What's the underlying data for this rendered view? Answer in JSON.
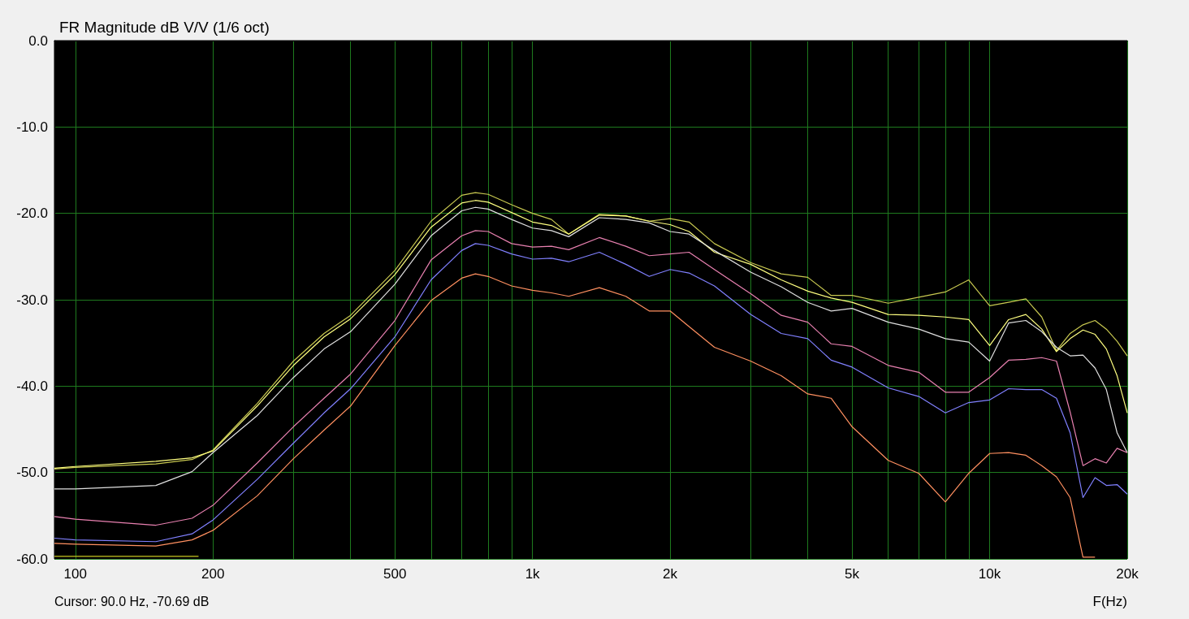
{
  "chart_data": {
    "type": "line",
    "title": "FR Magnitude dB V/V (1/6 oct)",
    "xlabel": "F(Hz)",
    "annotations": [
      "Cursor: 90.0 Hz, -70.69 dB"
    ],
    "log": "x",
    "grid": true,
    "marker": "none",
    "line_style": "solid",
    "xlim": [
      90,
      20000
    ],
    "ylim": [
      -60,
      0
    ],
    "xticks": [
      100,
      {
        "value": 200,
        "label": "200"
      },
      {
        "value": 300,
        "label": null
      },
      {
        "value": 400,
        "label": null
      },
      500,
      {
        "value": 600,
        "label": null
      },
      {
        "value": 700,
        "label": null
      },
      {
        "value": 800,
        "label": null
      },
      {
        "value": 900,
        "label": null
      },
      {
        "value": 1000,
        "label": "1k"
      },
      {
        "value": 2000,
        "label": "2k"
      },
      {
        "value": 3000,
        "label": null
      },
      {
        "value": 4000,
        "label": null
      },
      {
        "value": 5000,
        "label": "5k"
      },
      {
        "value": 6000,
        "label": null
      },
      {
        "value": 7000,
        "label": null
      },
      {
        "value": 8000,
        "label": null
      },
      {
        "value": 9000,
        "label": null
      },
      {
        "value": 10000,
        "label": "10k"
      },
      {
        "value": 20000,
        "label": "20k"
      }
    ],
    "yticks": [
      {
        "value": 0,
        "label": "0.0"
      },
      {
        "value": -10,
        "label": "-10.0"
      },
      {
        "value": -20,
        "label": "-20.0"
      },
      {
        "value": -30,
        "label": "-30.0"
      },
      {
        "value": -40,
        "label": "-40.0"
      },
      {
        "value": -50,
        "label": "-50.0"
      },
      {
        "value": -60,
        "label": "-60.0"
      }
    ],
    "x": [
      90,
      100,
      150,
      180,
      200,
      250,
      300,
      350,
      400,
      500,
      600,
      700,
      750,
      800,
      900,
      1000,
      1100,
      1200,
      1400,
      1600,
      1800,
      2000,
      2200,
      2500,
      3000,
      3500,
      4000,
      4500,
      5000,
      6000,
      7000,
      8000,
      9000,
      10000,
      11000,
      12000,
      13000,
      14000,
      15000,
      16000,
      17000,
      18000,
      19000,
      20000
    ],
    "series": [
      {
        "color": "#c8c850",
        "values": [
          -49.6,
          -49.4,
          -49.0,
          -48.5,
          -47.4,
          -42.0,
          -37.1,
          -33.9,
          -31.8,
          -26.6,
          -20.9,
          -17.9,
          -17.6,
          -17.8,
          -19.0,
          -20.0,
          -20.7,
          -22.4,
          -20.1,
          -20.3,
          -20.9,
          -20.6,
          -21.0,
          -23.5,
          -25.7,
          -27.0,
          -27.4,
          -29.5,
          -29.5,
          -30.4,
          -29.7,
          -29.1,
          -27.7,
          -30.7,
          -30.3,
          -29.9,
          -32.0,
          -35.9,
          -33.9,
          -32.9,
          -32.4,
          -33.4,
          -34.8,
          -36.5
        ]
      },
      {
        "color": "#ffff80",
        "values": [
          -49.5,
          -49.3,
          -48.7,
          -48.3,
          -47.5,
          -42.3,
          -37.6,
          -34.3,
          -32.2,
          -27.1,
          -21.6,
          -18.8,
          -18.5,
          -18.7,
          -19.9,
          -21.0,
          -21.4,
          -22.4,
          -20.2,
          -20.3,
          -20.9,
          -21.3,
          -22.1,
          -24.5,
          -25.9,
          -27.7,
          -29.0,
          -29.8,
          -30.3,
          -31.7,
          -31.8,
          -32.0,
          -32.3,
          -35.3,
          -32.3,
          -31.7,
          -33.4,
          -36.0,
          -34.5,
          -33.5,
          -34.0,
          -35.7,
          -38.8,
          -43.1
        ]
      },
      {
        "color": "#e0e0e0",
        "values": [
          -51.9,
          -51.9,
          -51.5,
          -49.9,
          -47.7,
          -43.4,
          -39.0,
          -35.7,
          -33.7,
          -28.2,
          -22.6,
          -19.7,
          -19.3,
          -19.5,
          -20.7,
          -21.7,
          -22.0,
          -22.7,
          -20.5,
          -20.7,
          -21.1,
          -22.1,
          -22.4,
          -24.3,
          -26.8,
          -28.5,
          -30.3,
          -31.3,
          -31.0,
          -32.6,
          -33.4,
          -34.5,
          -34.9,
          -37.1,
          -32.7,
          -32.4,
          -33.7,
          -35.5,
          -36.5,
          -36.4,
          -37.9,
          -40.4,
          -45.4,
          -47.7
        ]
      },
      {
        "color": "#e880b0",
        "values": [
          -55.1,
          -55.4,
          -56.1,
          -55.3,
          -53.8,
          -48.9,
          -44.7,
          -41.4,
          -38.6,
          -32.4,
          -25.4,
          -22.6,
          -22.0,
          -22.1,
          -23.5,
          -23.9,
          -23.8,
          -24.2,
          -22.8,
          -23.8,
          -24.9,
          -24.7,
          -24.5,
          -26.5,
          -29.3,
          -31.8,
          -32.6,
          -35.1,
          -35.4,
          -37.6,
          -38.4,
          -40.7,
          -40.7,
          -39.0,
          -37.0,
          -36.9,
          -36.7,
          -37.1,
          -43.0,
          -49.2,
          -48.4,
          -48.9,
          -47.2,
          -47.7
        ]
      },
      {
        "color": "#8080ff",
        "values": [
          -57.6,
          -57.8,
          -58.0,
          -57.1,
          -55.5,
          -50.8,
          -46.6,
          -43.1,
          -40.3,
          -34.3,
          -27.7,
          -24.3,
          -23.5,
          -23.7,
          -24.7,
          -25.3,
          -25.2,
          -25.6,
          -24.5,
          -25.9,
          -27.3,
          -26.5,
          -26.9,
          -28.4,
          -31.7,
          -33.9,
          -34.5,
          -37.0,
          -37.8,
          -40.2,
          -41.2,
          -43.1,
          -41.9,
          -41.6,
          -40.3,
          -40.4,
          -40.4,
          -41.4,
          -45.4,
          -52.9,
          -50.6,
          -51.5,
          -51.4,
          -52.5
        ]
      },
      {
        "color": "#ff9060",
        "values": [
          -58.2,
          -58.3,
          -58.5,
          -57.8,
          -56.7,
          -52.7,
          -48.4,
          -45.1,
          -42.3,
          -35.3,
          -30.1,
          -27.5,
          -27.0,
          -27.3,
          -28.4,
          -28.9,
          -29.2,
          -29.6,
          -28.6,
          -29.6,
          -31.3,
          -31.3,
          -33.1,
          -35.5,
          -37.1,
          -38.8,
          -40.9,
          -41.4,
          -44.7,
          -48.6,
          -50.1,
          -53.4,
          -50.1,
          -47.8,
          -47.7,
          -48.0,
          -49.2,
          -50.5,
          -52.9,
          -59.8,
          -59.8,
          null,
          null,
          null
        ]
      },
      {
        "color": "#c8c820",
        "x": [
          90,
          186
        ],
        "values": [
          -59.7,
          -59.7
        ]
      }
    ]
  }
}
